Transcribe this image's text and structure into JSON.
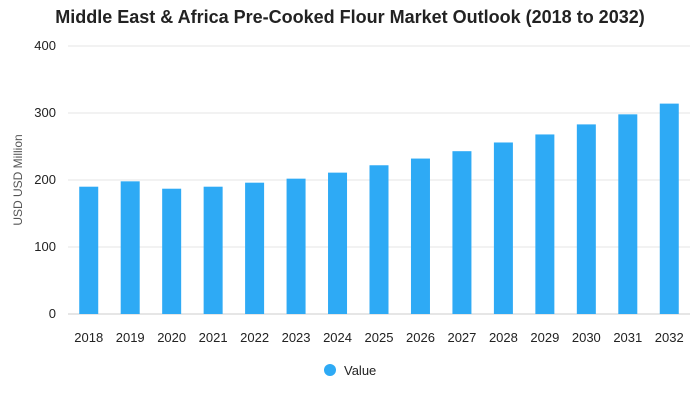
{
  "chart_data": {
    "type": "bar",
    "title": "Middle East & Africa Pre-Cooked Flour Market Outlook (2018 to 2032)",
    "ylabel": "USD USD Million",
    "xlabel": "",
    "ylim": [
      0,
      400
    ],
    "yticks": [
      0,
      100,
      200,
      300,
      400
    ],
    "grid": true,
    "legend_position": "bottom",
    "categories": [
      "2018",
      "2019",
      "2020",
      "2021",
      "2022",
      "2023",
      "2024",
      "2025",
      "2026",
      "2027",
      "2028",
      "2029",
      "2030",
      "2031",
      "2032"
    ],
    "series": [
      {
        "name": "Value",
        "color": "#2eaaf5",
        "values": [
          190,
          198,
          187,
          190,
          196,
          202,
          211,
          222,
          232,
          243,
          256,
          268,
          283,
          298,
          314
        ]
      }
    ]
  }
}
